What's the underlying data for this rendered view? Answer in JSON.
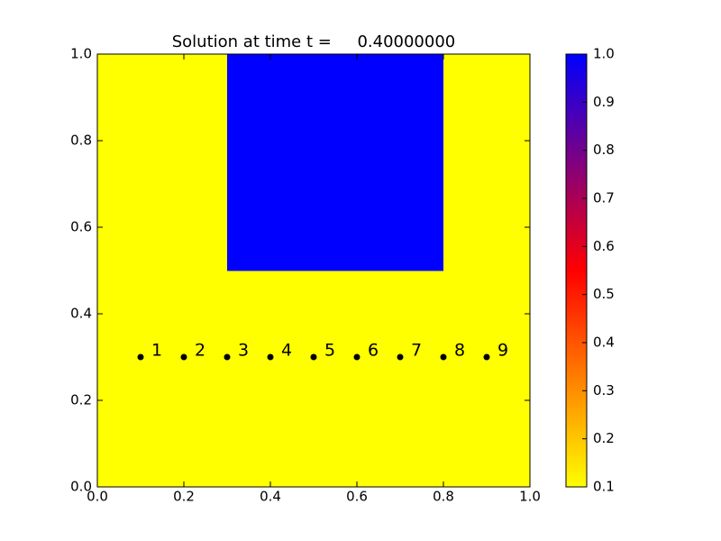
{
  "chart_data": {
    "type": "heatmap",
    "title": "Solution at time t =     0.40000000",
    "xlim": [
      0,
      1
    ],
    "ylim": [
      0,
      1
    ],
    "xticks": [
      {
        "value": 0,
        "label": "0.0"
      },
      0.2,
      0.4,
      0.6,
      0.8,
      {
        "value": 1,
        "label": "1.0"
      }
    ],
    "yticks": [
      {
        "value": 0,
        "label": "0.0"
      },
      0.2,
      0.4,
      0.6,
      0.8,
      {
        "value": 1,
        "label": "1.0"
      }
    ],
    "z": [
      [
        0.1,
        0.1,
        0.1,
        0.1,
        0.1,
        0.1,
        0.1,
        0.1,
        0.1,
        0.1
      ],
      [
        0.1,
        0.1,
        0.1,
        0.1,
        0.1,
        0.1,
        0.1,
        0.1,
        0.1,
        0.1
      ],
      [
        0.1,
        0.1,
        0.1,
        0.1,
        0.1,
        0.1,
        0.1,
        0.1,
        0.1,
        0.1
      ],
      [
        0.1,
        0.1,
        0.1,
        0.1,
        0.1,
        0.1,
        0.1,
        0.1,
        0.1,
        0.1
      ],
      [
        0.1,
        0.1,
        0.1,
        0.1,
        0.1,
        0.1,
        0.1,
        0.1,
        0.1,
        0.1
      ],
      [
        0.1,
        0.1,
        0.1,
        1.0,
        1.0,
        1.0,
        1.0,
        1.0,
        0.1,
        0.1
      ],
      [
        0.1,
        0.1,
        0.1,
        1.0,
        1.0,
        1.0,
        1.0,
        1.0,
        0.1,
        0.1
      ],
      [
        0.1,
        0.1,
        0.1,
        1.0,
        1.0,
        1.0,
        1.0,
        1.0,
        0.1,
        0.1
      ],
      [
        0.1,
        0.1,
        0.1,
        1.0,
        1.0,
        1.0,
        1.0,
        1.0,
        0.1,
        0.1
      ],
      [
        0.1,
        0.1,
        0.1,
        1.0,
        1.0,
        1.0,
        1.0,
        1.0,
        0.1,
        0.1
      ]
    ],
    "colormap": [
      "#ffff00",
      "#ff0000",
      "#0000ff"
    ],
    "clim": [
      0.1,
      1
    ],
    "cticks": [
      0.1,
      0.2,
      0.3,
      0.4,
      0.5,
      0.6,
      0.7,
      0.8,
      0.9,
      {
        "value": 1,
        "label": "1.0"
      }
    ],
    "points": {
      "x": [
        0.1,
        0.2,
        0.3,
        0.4,
        0.5,
        0.6,
        0.7,
        0.8,
        0.9
      ],
      "y": [
        0.3,
        0.3,
        0.3,
        0.3,
        0.3,
        0.3,
        0.3,
        0.3,
        0.3
      ],
      "labels": [
        "1",
        "2",
        "3",
        "4",
        "5",
        "6",
        "7",
        "8",
        "9"
      ],
      "color": "#000000"
    }
  }
}
